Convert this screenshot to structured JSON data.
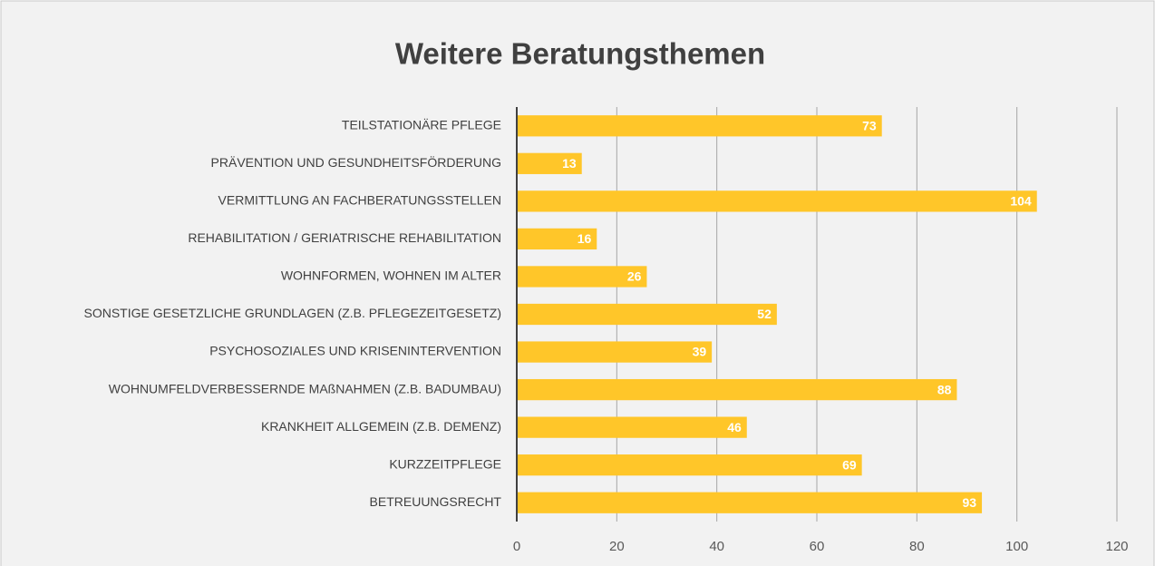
{
  "chart_data": {
    "type": "hbar",
    "title": "Weitere Beratungsthemen",
    "categories": [
      "TEILSTATIONÄRE PFLEGE",
      "PRÄVENTION UND GESUNDHEITSFÖRDERUNG",
      "VERMITTLUNG AN FACHBERATUNGSSTELLEN",
      "REHABILITATION / GERIATRISCHE REHABILITATION",
      "WOHNFORMEN, WOHNEN IM ALTER",
      "SONSTIGE GESETZLICHE GRUNDLAGEN (Z.B. PFLEGEZEITGESETZ)",
      "PSYCHOSOZIALES UND KRISENINTERVENTION",
      "WOHNUMFELDVERBESSERNDE MAßNAHMEN (Z.B. BADUMBAU)",
      "KRANKHEIT ALLGEMEIN (Z.B. DEMENZ)",
      "KURZZEITPFLEGE",
      "BETREUUNGSRECHT"
    ],
    "values": [
      73,
      13,
      104,
      16,
      26,
      52,
      39,
      88,
      46,
      69,
      93
    ],
    "color": "#ffc629",
    "xlim": [
      0,
      120
    ],
    "xticks": [
      0,
      20,
      40,
      60,
      80,
      100,
      120
    ],
    "grid": true
  }
}
